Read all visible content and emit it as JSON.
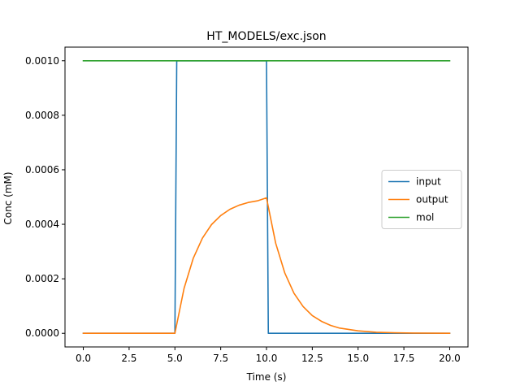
{
  "chart_data": {
    "type": "line",
    "title": "HT_MODELS/exc.json",
    "xlabel": "Time (s)",
    "ylabel": "Conc (mM)",
    "xlim": [
      -1.0,
      21.0
    ],
    "ylim": [
      -5e-05,
      0.00105
    ],
    "xticks": [
      0.0,
      2.5,
      5.0,
      7.5,
      10.0,
      12.5,
      15.0,
      17.5,
      20.0
    ],
    "xtick_labels": [
      "0.0",
      "2.5",
      "5.0",
      "7.5",
      "10.0",
      "12.5",
      "15.0",
      "17.5",
      "20.0"
    ],
    "yticks": [
      0.0,
      0.0002,
      0.0004,
      0.0006,
      0.0008,
      0.001
    ],
    "ytick_labels": [
      "0.0000",
      "0.0002",
      "0.0004",
      "0.0006",
      "0.0008",
      "0.0010"
    ],
    "grid": false,
    "legend_position": "center-right",
    "series": [
      {
        "name": "input",
        "color": "#1f77b4",
        "x": [
          0.0,
          5.0,
          5.1,
          10.0,
          10.1,
          20.0
        ],
        "y": [
          0.0,
          0.0,
          0.001,
          0.001,
          0.0,
          0.0
        ]
      },
      {
        "name": "output",
        "color": "#ff7f0e",
        "x": [
          0.0,
          5.0,
          5.5,
          6.0,
          6.5,
          7.0,
          7.5,
          8.0,
          8.5,
          9.0,
          9.5,
          10.0,
          10.5,
          11.0,
          11.5,
          12.0,
          12.5,
          13.0,
          13.5,
          14.0,
          15.0,
          16.0,
          17.0,
          18.0,
          20.0
        ],
        "y": [
          0.0,
          0.0,
          0.000165,
          0.000275,
          0.000349,
          0.000399,
          0.000432,
          0.000455,
          0.00047,
          0.00048,
          0.000486,
          0.000497,
          0.000331,
          0.000221,
          0.000147,
          9.8e-05,
          6.5e-05,
          4.4e-05,
          2.9e-05,
          1.9e-05,
          9e-06,
          4e-06,
          2e-06,
          1e-06,
          0.0
        ]
      },
      {
        "name": "mol",
        "color": "#2ca02c",
        "x": [
          0.0,
          20.0
        ],
        "y": [
          0.001,
          0.001
        ]
      }
    ]
  }
}
